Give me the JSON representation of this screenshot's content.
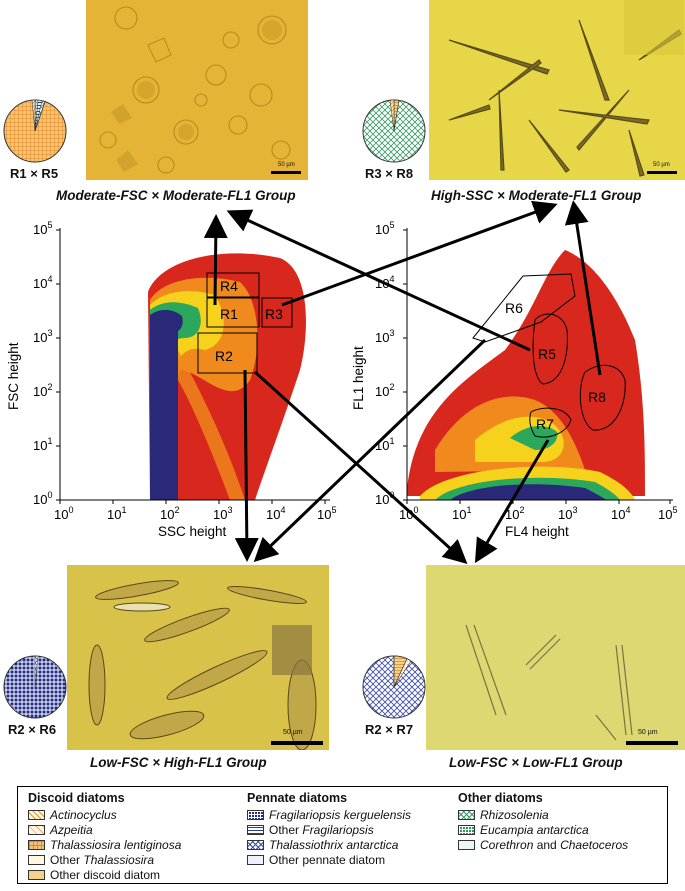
{
  "colors": {
    "photo_bg_top_left": "#e4b030",
    "photo_bg_top_right": "#e6d446",
    "photo_bg_bottom_left": "#d9c24a",
    "photo_bg_bottom_right": "#ddd872",
    "density_low": "#d8281e",
    "density_mid": "#f6d21c",
    "density_high": "#2ca85c",
    "density_core": "#2a2878",
    "arrow": "#000000",
    "orange_fill": "#f0a040",
    "green_fill": "#4cae74",
    "navy_fill": "#1c2a88",
    "blue_fill": "#4a56aa"
  },
  "groups": {
    "tl": {
      "title": "Moderate-FSC × Moderate-FL1 Group",
      "pie_label": "R1 × R5",
      "scale": "50 µm"
    },
    "tr": {
      "title": "High-SSC × Moderate-FL1 Group",
      "pie_label": "R3 × R8",
      "scale": "50 µm"
    },
    "bl": {
      "title": "Low-FSC × High-FL1 Group",
      "pie_label": "R2 × R6",
      "scale": "50 µm"
    },
    "br": {
      "title": "Low-FSC × Low-FL1 Group",
      "pie_label": "R2 × R7",
      "scale": "50 µm"
    }
  },
  "plot_left": {
    "xlabel": "SSC height",
    "ylabel": "FSC height",
    "x_ticks": [
      "10",
      "10",
      "10",
      "10",
      "10",
      "10"
    ],
    "x_exps": [
      "0",
      "1",
      "2",
      "3",
      "4",
      "5"
    ],
    "y_ticks": [
      "10",
      "10",
      "10",
      "10",
      "10",
      "10"
    ],
    "y_exps": [
      "0",
      "1",
      "2",
      "3",
      "4",
      "5"
    ],
    "gates": [
      "R4",
      "R1",
      "R3",
      "R2"
    ]
  },
  "plot_right": {
    "xlabel": "FL4 height",
    "ylabel": "FL1 height",
    "x_ticks": [
      "10",
      "10",
      "10",
      "10",
      "10",
      "10"
    ],
    "x_exps": [
      "0",
      "1",
      "2",
      "3",
      "4",
      "5"
    ],
    "y_ticks": [
      "10",
      "10",
      "10",
      "10",
      "10",
      "10"
    ],
    "y_exps": [
      "0",
      "1",
      "2",
      "3",
      "4",
      "5"
    ],
    "gates": [
      "R6",
      "R5",
      "R8",
      "R7"
    ]
  },
  "legend": {
    "col1": {
      "heading": "Discoid diatoms",
      "items": [
        {
          "label": "Actinocyclus",
          "italic": true
        },
        {
          "label": "Azpeitia",
          "italic": true
        },
        {
          "label": "Thalassiosira lentiginosa",
          "italic": true
        },
        {
          "label": "Other ",
          "label2": "Thalassiosira",
          "italic": false
        },
        {
          "label": "Other discoid diatom",
          "italic": false
        }
      ]
    },
    "col2": {
      "heading": "Pennate diatoms",
      "items": [
        {
          "label": "Fragilariopsis kerguelensis",
          "italic": true
        },
        {
          "label": "Other ",
          "label2": "Fragilariopsis",
          "italic": false
        },
        {
          "label": "Thalassiothrix antarctica",
          "italic": true
        },
        {
          "label": "Other pennate diatom",
          "italic": false
        }
      ]
    },
    "col3": {
      "heading": "Other diatoms",
      "items": [
        {
          "label": "Rhizosolenia",
          "italic": true
        },
        {
          "label": "Eucampia antarctica",
          "italic": true
        },
        {
          "label": "Corethron",
          "label2": " and ",
          "label3": "Chaetoceros",
          "italic": true
        }
      ]
    }
  }
}
